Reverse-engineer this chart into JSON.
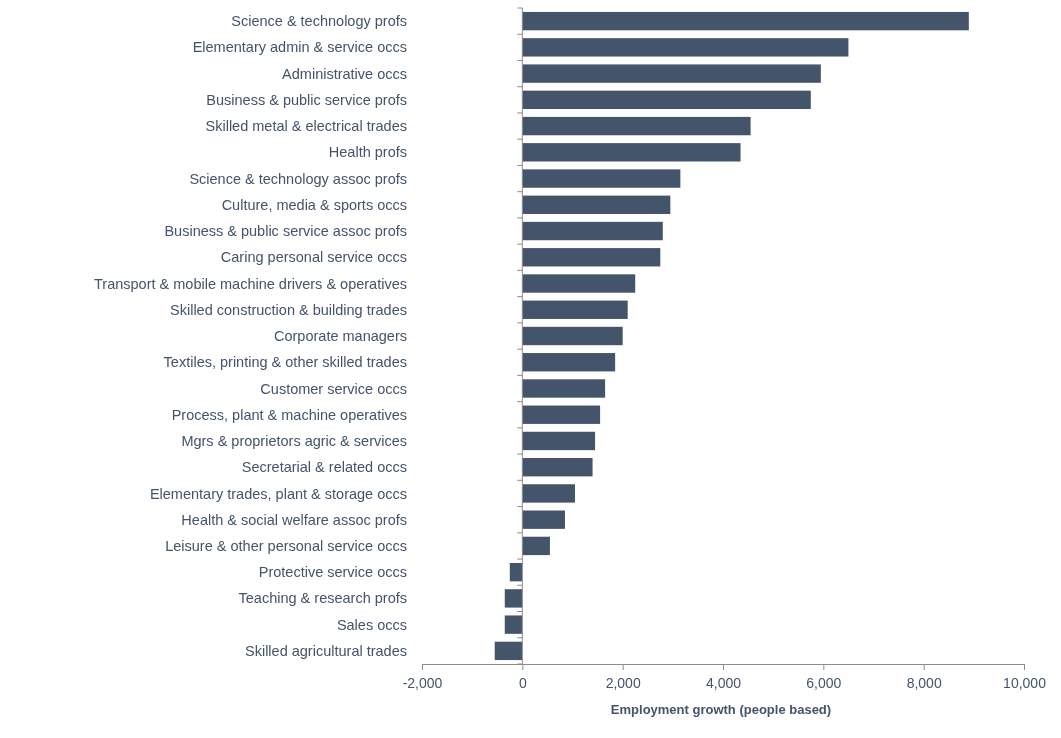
{
  "chart_data": {
    "type": "bar",
    "orientation": "horizontal",
    "xlabel": "Employment growth (people based)",
    "categories": [
      "Science & technology profs",
      "Elementary admin & service occs",
      "Administrative occs",
      "Business & public service profs",
      "Skilled metal & electrical trades",
      "Health profs",
      "Science & technology assoc profs",
      "Culture, media & sports occs",
      "Business & public service assoc profs",
      "Caring personal service occs",
      "Transport & mobile machine drivers & operatives",
      "Skilled construction & building trades",
      "Corporate managers",
      "Textiles, printing & other skilled trades",
      "Customer service occs",
      "Process, plant & machine operatives",
      "Mgrs & proprietors agric & services",
      "Secretarial & related occs",
      "Elementary trades, plant & storage occs",
      "Health & social welfare assoc profs",
      "Leisure & other personal service occs",
      "Protective service occs",
      "Teaching & research profs",
      "Sales occs",
      "Skilled agricultural trades"
    ],
    "values": [
      8900,
      6500,
      5950,
      5750,
      4550,
      4350,
      3150,
      2950,
      2800,
      2750,
      2250,
      2100,
      2000,
      1850,
      1650,
      1550,
      1450,
      1400,
      1050,
      850,
      550,
      -250,
      -350,
      -350,
      -550
    ],
    "color": "#44546a",
    "xlim": [
      -2000,
      10000
    ],
    "xticks": [
      {
        "value": -2000,
        "label": "-2,000"
      },
      0,
      {
        "value": 2000,
        "label": "2,000"
      },
      {
        "value": 4000,
        "label": "4,000"
      },
      {
        "value": 6000,
        "label": "6,000"
      },
      {
        "value": 8000,
        "label": "8,000"
      },
      {
        "value": 10000,
        "label": "10,000"
      }
    ],
    "tick_labels": true
  }
}
